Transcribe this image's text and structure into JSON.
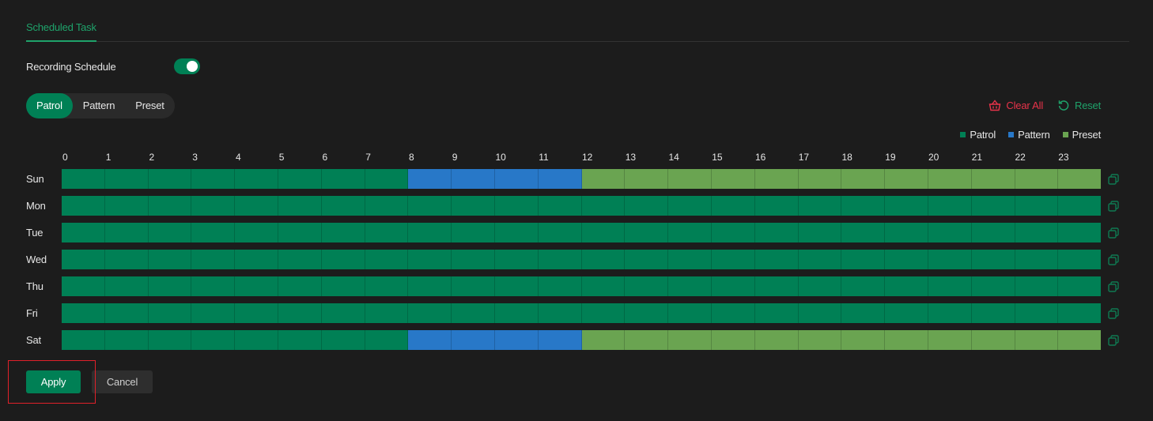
{
  "tabs": [
    {
      "label": "Scheduled Task",
      "active": true
    }
  ],
  "recording_schedule": {
    "label": "Recording Schedule",
    "enabled": true
  },
  "mode_selector": {
    "options": [
      {
        "label": "Patrol",
        "active": true
      },
      {
        "label": "Pattern",
        "active": false
      },
      {
        "label": "Preset",
        "active": false
      }
    ]
  },
  "actions": {
    "clear_all": {
      "label": "Clear All",
      "icon": "basket-icon",
      "color": "#e8334a"
    },
    "reset": {
      "label": "Reset",
      "icon": "rotate-ccw-icon",
      "color": "#1fa36b"
    }
  },
  "legend": [
    {
      "label": "Patrol",
      "color": "#008055"
    },
    {
      "label": "Pattern",
      "color": "#2878c8"
    },
    {
      "label": "Preset",
      "color": "#6aa451"
    }
  ],
  "hours": [
    "0",
    "1",
    "2",
    "3",
    "4",
    "5",
    "6",
    "7",
    "8",
    "9",
    "10",
    "11",
    "12",
    "13",
    "14",
    "15",
    "16",
    "17",
    "18",
    "19",
    "20",
    "21",
    "22",
    "23"
  ],
  "schedule": [
    {
      "day": "Sun",
      "slots": [
        "patrol",
        "patrol",
        "patrol",
        "patrol",
        "patrol",
        "patrol",
        "patrol",
        "patrol",
        "pattern",
        "pattern",
        "pattern",
        "pattern",
        "preset",
        "preset",
        "preset",
        "preset",
        "preset",
        "preset",
        "preset",
        "preset",
        "preset",
        "preset",
        "preset",
        "preset"
      ]
    },
    {
      "day": "Mon",
      "slots": [
        "patrol",
        "patrol",
        "patrol",
        "patrol",
        "patrol",
        "patrol",
        "patrol",
        "patrol",
        "patrol",
        "patrol",
        "patrol",
        "patrol",
        "patrol",
        "patrol",
        "patrol",
        "patrol",
        "patrol",
        "patrol",
        "patrol",
        "patrol",
        "patrol",
        "patrol",
        "patrol",
        "patrol"
      ]
    },
    {
      "day": "Tue",
      "slots": [
        "patrol",
        "patrol",
        "patrol",
        "patrol",
        "patrol",
        "patrol",
        "patrol",
        "patrol",
        "patrol",
        "patrol",
        "patrol",
        "patrol",
        "patrol",
        "patrol",
        "patrol",
        "patrol",
        "patrol",
        "patrol",
        "patrol",
        "patrol",
        "patrol",
        "patrol",
        "patrol",
        "patrol"
      ]
    },
    {
      "day": "Wed",
      "slots": [
        "patrol",
        "patrol",
        "patrol",
        "patrol",
        "patrol",
        "patrol",
        "patrol",
        "patrol",
        "patrol",
        "patrol",
        "patrol",
        "patrol",
        "patrol",
        "patrol",
        "patrol",
        "patrol",
        "patrol",
        "patrol",
        "patrol",
        "patrol",
        "patrol",
        "patrol",
        "patrol",
        "patrol"
      ]
    },
    {
      "day": "Thu",
      "slots": [
        "patrol",
        "patrol",
        "patrol",
        "patrol",
        "patrol",
        "patrol",
        "patrol",
        "patrol",
        "patrol",
        "patrol",
        "patrol",
        "patrol",
        "patrol",
        "patrol",
        "patrol",
        "patrol",
        "patrol",
        "patrol",
        "patrol",
        "patrol",
        "patrol",
        "patrol",
        "patrol",
        "patrol"
      ]
    },
    {
      "day": "Fri",
      "slots": [
        "patrol",
        "patrol",
        "patrol",
        "patrol",
        "patrol",
        "patrol",
        "patrol",
        "patrol",
        "patrol",
        "patrol",
        "patrol",
        "patrol",
        "patrol",
        "patrol",
        "patrol",
        "patrol",
        "patrol",
        "patrol",
        "patrol",
        "patrol",
        "patrol",
        "patrol",
        "patrol",
        "patrol"
      ]
    },
    {
      "day": "Sat",
      "slots": [
        "patrol",
        "patrol",
        "patrol",
        "patrol",
        "patrol",
        "patrol",
        "patrol",
        "patrol",
        "pattern",
        "pattern",
        "pattern",
        "pattern",
        "preset",
        "preset",
        "preset",
        "preset",
        "preset",
        "preset",
        "preset",
        "preset",
        "preset",
        "preset",
        "preset",
        "preset"
      ]
    }
  ],
  "footer": {
    "apply_label": "Apply",
    "cancel_label": "Cancel"
  }
}
